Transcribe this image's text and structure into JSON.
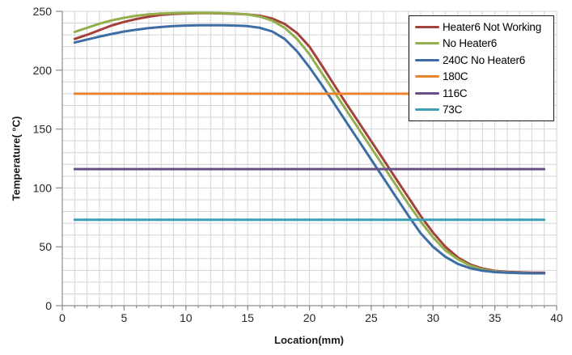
{
  "chart_data": {
    "type": "line",
    "title": "",
    "xlabel": "Location(mm)",
    "ylabel": "Temperature( °C)",
    "xlim": [
      0,
      40
    ],
    "ylim": [
      0,
      250
    ],
    "x_ticks": [
      0,
      5,
      10,
      15,
      20,
      25,
      30,
      35,
      40
    ],
    "y_ticks": [
      0,
      50,
      100,
      150,
      200,
      250
    ],
    "x_grid_step": 1,
    "y_grid_step": 10,
    "grid": true,
    "legend_position": "top-right",
    "x": [
      1,
      2,
      3,
      4,
      5,
      6,
      7,
      8,
      9,
      10,
      11,
      12,
      13,
      14,
      15,
      16,
      17,
      18,
      19,
      20,
      21,
      22,
      23,
      24,
      25,
      26,
      27,
      28,
      29,
      30,
      31,
      32,
      33,
      34,
      35,
      36,
      37,
      38,
      39
    ],
    "series": [
      {
        "name": "Heater6 Not Working",
        "color": "#A5413C",
        "values": [
          226.5,
          230,
          234,
          238,
          241,
          243.5,
          245.5,
          247,
          247.8,
          248.2,
          248.4,
          248.4,
          248.2,
          247.9,
          247.3,
          246.2,
          243.8,
          239.3,
          231.5,
          220,
          204,
          187.5,
          171.3,
          155.5,
          139.6,
          123.8,
          107.9,
          92.1,
          76.2,
          62,
          50,
          41,
          35,
          31.5,
          29.5,
          28.7,
          28.3,
          28,
          28
        ]
      },
      {
        "name": "No Heater6",
        "color": "#92AF4B",
        "values": [
          232.5,
          236,
          239.5,
          242.3,
          244.5,
          246.2,
          247.4,
          248.1,
          248.5,
          248.7,
          248.7,
          248.7,
          248.5,
          248.1,
          247.3,
          245.5,
          242,
          236,
          226.5,
          213.5,
          197.5,
          181.6,
          165.7,
          149.9,
          134,
          118.2,
          102.3,
          86.5,
          71.5,
          58,
          47,
          39.5,
          34,
          30.8,
          29,
          28.2,
          27.8,
          27.5,
          27.5
        ]
      },
      {
        "name": "240C No Heater6",
        "color": "#3E6DA5",
        "values": [
          223.5,
          226,
          228.5,
          230.8,
          232.8,
          234.4,
          235.7,
          236.7,
          237.4,
          237.9,
          238.2,
          238.2,
          238.1,
          237.9,
          237.4,
          236,
          232.8,
          226.5,
          216,
          202.5,
          187.4,
          171.6,
          155.7,
          139.9,
          124,
          108.2,
          92.3,
          76.5,
          61.5,
          50,
          41.5,
          35.5,
          31.8,
          29.7,
          28.5,
          28,
          27.7,
          27.5,
          27.5
        ]
      },
      {
        "name": "180C",
        "color": "#E8832E",
        "constant": 180,
        "x_range": [
          1,
          39
        ]
      },
      {
        "name": "116C",
        "color": "#6A5086",
        "constant": 116,
        "x_range": [
          1,
          39
        ]
      },
      {
        "name": "73C",
        "color": "#3D9FB5",
        "constant": 73,
        "x_range": [
          1,
          39
        ]
      }
    ],
    "colors": {
      "grid": "#D2D4D6",
      "axis": "#8C8C8C",
      "tick_label": "#262626"
    }
  }
}
